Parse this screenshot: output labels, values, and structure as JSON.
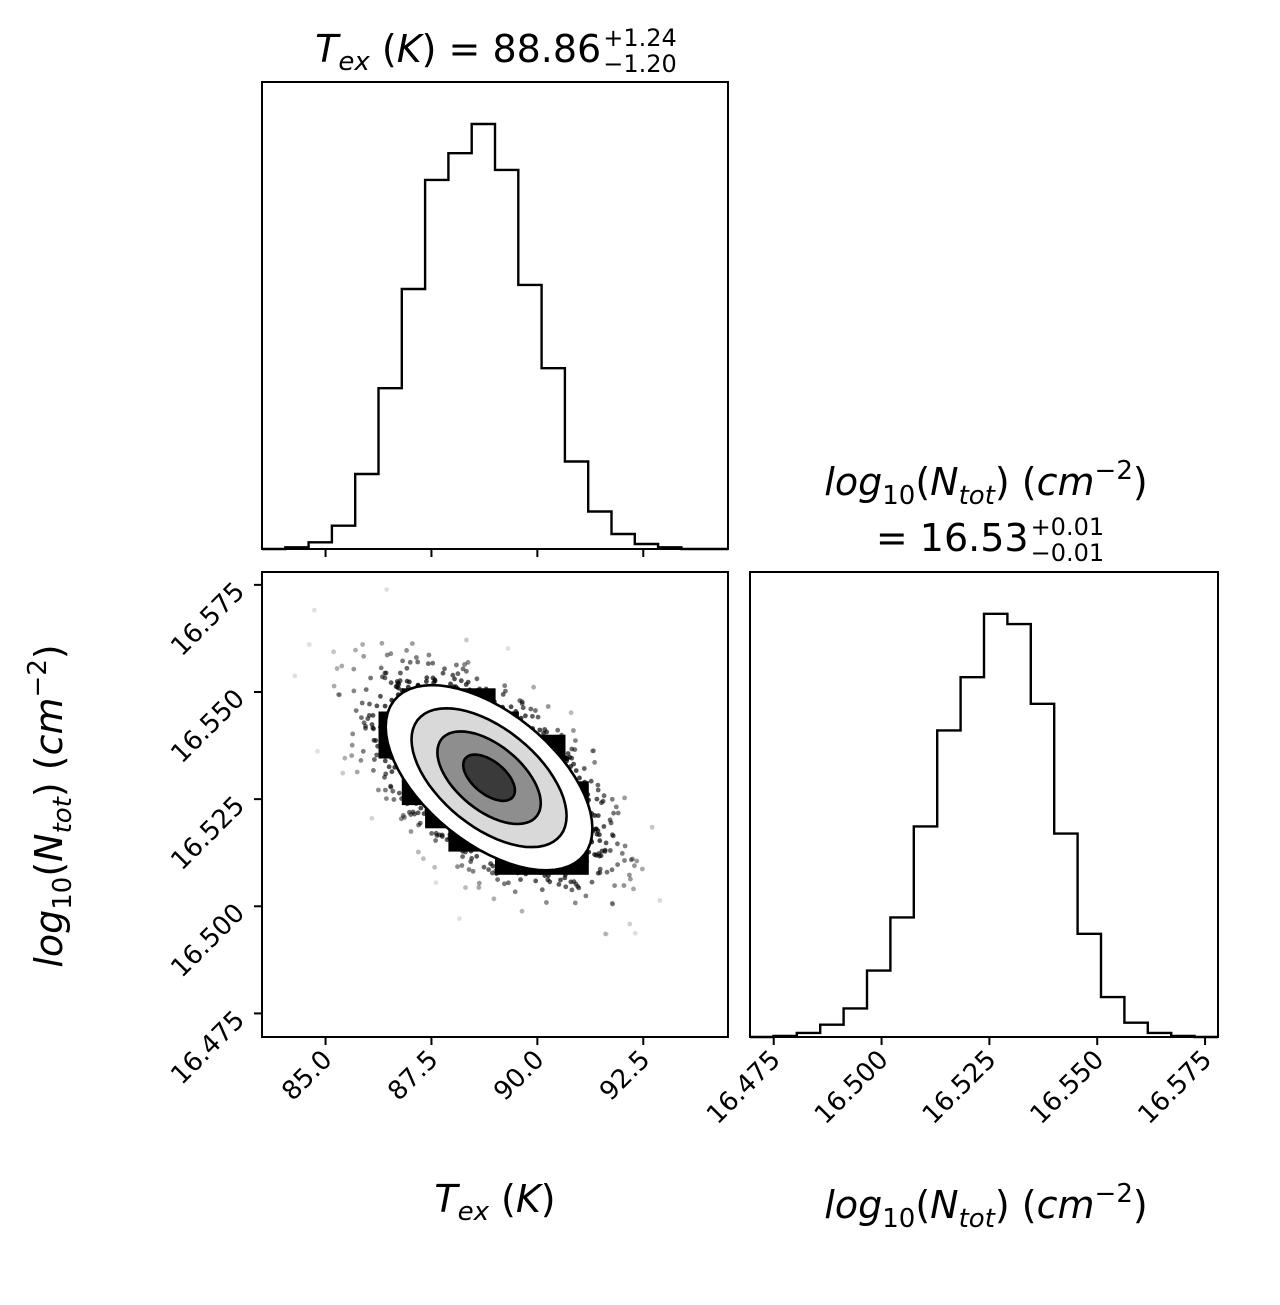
{
  "chart_data": {
    "type": "corner",
    "parameters": [
      {
        "key": "tex",
        "axis_label": {
          "sym": "T",
          "sub": "ex",
          "unit": "(K)"
        },
        "title": {
          "line1": "",
          "equals": "=",
          "value": "88.86",
          "plus": "+1.24",
          "minus": "−1.20"
        },
        "range": [
          83.5,
          94.5
        ],
        "ticks": [
          85.0,
          87.5,
          90.0,
          92.5
        ],
        "tick_labels": [
          "85.0",
          "87.5",
          "90.0",
          "92.5"
        ],
        "hist_bins": [
          83.5,
          84.05,
          84.6,
          85.15,
          85.7,
          86.25,
          86.8,
          87.35,
          87.9,
          88.45,
          89.0,
          89.55,
          90.1,
          90.65,
          91.2,
          91.75,
          92.3,
          92.85,
          93.4,
          93.95,
          94.5
        ],
        "hist_counts": [
          0,
          2,
          8,
          28,
          90,
          193,
          312,
          443,
          475,
          510,
          455,
          317,
          217,
          105,
          45,
          18,
          6,
          2,
          0,
          0
        ],
        "hist_max": 510
      },
      {
        "key": "logn",
        "axis_label": {
          "sym": "log",
          "sub": "10",
          "inner_sym": "N",
          "inner_sub": "tot",
          "unit": "cm",
          "exp": "−2"
        },
        "title": {
          "line1": "log10(Ntot) (cm-2)",
          "equals": "=",
          "value": "16.53",
          "plus": "+0.01",
          "minus": "−0.01"
        },
        "range": [
          16.4695,
          16.578
        ],
        "ticks": [
          16.475,
          16.5,
          16.525,
          16.55,
          16.575
        ],
        "tick_labels": [
          "16.475",
          "16.500",
          "16.525",
          "16.550",
          "16.575"
        ],
        "hist_bins": [
          16.4695,
          16.47493,
          16.48035,
          16.48578,
          16.4912,
          16.49663,
          16.50205,
          16.50748,
          16.5129,
          16.51833,
          16.52375,
          16.52918,
          16.5346,
          16.54003,
          16.54545,
          16.55088,
          16.5563,
          16.56173,
          16.56715,
          16.57258,
          16.578
        ],
        "hist_counts": [
          0,
          1,
          4,
          12,
          28,
          65,
          117,
          206,
          300,
          352,
          414,
          404,
          326,
          199,
          101,
          39,
          14,
          4,
          1,
          0
        ],
        "hist_max": 414
      }
    ],
    "joint": {
      "x_param": "tex",
      "y_param": "logn",
      "mean": [
        88.86,
        16.53
      ],
      "sigma": [
        1.22,
        0.0108
      ],
      "correlation": -0.55,
      "contour_levels_sigma": [
        0.5,
        1.0,
        1.5,
        2.0
      ],
      "n_scatter_points": 2600
    },
    "title_eq_tex": "=",
    "colors": {
      "ink": "#000000",
      "background": "#ffffff",
      "contour_fill": "#ffffff"
    }
  }
}
